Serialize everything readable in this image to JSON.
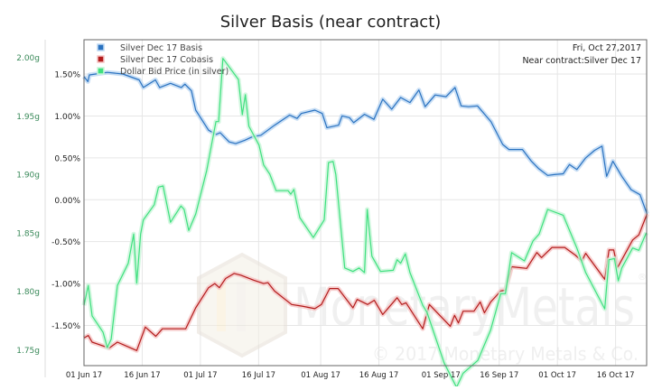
{
  "chart_data": {
    "type": "line",
    "title": "Silver Basis (near contract)",
    "annotation": {
      "date": "Fri, Oct 27,2017",
      "contract": "Near contract:Silver Dec 17"
    },
    "x_unit": "days since 01 Jun 17",
    "x_range": [
      0,
      145
    ],
    "x_ticks": [
      {
        "day": 0,
        "label": "01 Jun 17"
      },
      {
        "day": 15,
        "label": "16 Jun 17"
      },
      {
        "day": 30,
        "label": "01 Jul 17"
      },
      {
        "day": 45,
        "label": "16 Jul 17"
      },
      {
        "day": 61,
        "label": "01 Aug 17"
      },
      {
        "day": 76,
        "label": "16 Aug 17"
      },
      {
        "day": 92,
        "label": "01 Sep 17"
      },
      {
        "day": 107,
        "label": "16 Sep 17"
      },
      {
        "day": 122,
        "label": "01 Oct 17"
      },
      {
        "day": 137,
        "label": "16 Oct 17"
      }
    ],
    "y_left": {
      "range": [
        -1.98,
        1.91
      ],
      "ticks": [
        1.5,
        1.0,
        0.5,
        0.0,
        -0.5,
        -1.0,
        -1.5
      ],
      "tick_labels": [
        "1.50%",
        "1.00%",
        "0.50%",
        "0.00%",
        "-0.50%",
        "-1.00%",
        "-1.50%"
      ]
    },
    "y_right": {
      "range": [
        1.7365,
        2.015
      ],
      "ticks": [
        2.0,
        1.95,
        1.9,
        1.85,
        1.8,
        1.75
      ],
      "tick_labels": [
        "2.00g",
        "1.95g",
        "1.90g",
        "1.85g",
        "1.80g",
        "1.75g"
      ]
    },
    "grid": true,
    "legend_position": "top-left",
    "series": [
      {
        "name": "Silver Dec 17 Basis",
        "axis": "left",
        "color": "#2a72c0",
        "glow": "#bcd7f2",
        "points": [
          [
            0,
            1.47
          ],
          [
            1,
            1.41
          ],
          [
            1.4,
            1.49
          ],
          [
            3,
            1.5
          ],
          [
            6,
            1.52
          ],
          [
            10,
            1.5
          ],
          [
            14.2,
            1.43
          ],
          [
            15.3,
            1.34
          ],
          [
            18.4,
            1.43
          ],
          [
            19.5,
            1.34
          ],
          [
            22.3,
            1.39
          ],
          [
            25.1,
            1.34
          ],
          [
            26,
            1.38
          ],
          [
            27.7,
            1.3
          ],
          [
            28.8,
            1.07
          ],
          [
            32.1,
            0.83
          ],
          [
            34,
            0.78
          ],
          [
            35.1,
            0.8
          ],
          [
            37.4,
            0.69
          ],
          [
            39.1,
            0.67
          ],
          [
            41.4,
            0.71
          ],
          [
            43.3,
            0.75
          ],
          [
            45.6,
            0.77
          ],
          [
            49.1,
            0.89
          ],
          [
            53,
            1.01
          ],
          [
            54.9,
            0.97
          ],
          [
            56,
            1.03
          ],
          [
            59.5,
            1.07
          ],
          [
            61.4,
            1.03
          ],
          [
            62.6,
            0.86
          ],
          [
            65.6,
            0.89
          ],
          [
            66.5,
            1.0
          ],
          [
            68.4,
            0.98
          ],
          [
            69.5,
            0.92
          ],
          [
            72.3,
            1.02
          ],
          [
            74.7,
            0.96
          ],
          [
            77,
            1.2
          ],
          [
            79.3,
            1.08
          ],
          [
            81.6,
            1.22
          ],
          [
            84,
            1.16
          ],
          [
            86.3,
            1.31
          ],
          [
            87.9,
            1.11
          ],
          [
            90.5,
            1.25
          ],
          [
            93.3,
            1.23
          ],
          [
            95.6,
            1.34
          ],
          [
            97.2,
            1.12
          ],
          [
            99.1,
            1.11
          ],
          [
            101.4,
            1.12
          ],
          [
            104.9,
            0.93
          ],
          [
            107.9,
            0.66
          ],
          [
            109.5,
            0.6
          ],
          [
            113,
            0.6
          ],
          [
            115.3,
            0.46
          ],
          [
            117.2,
            0.37
          ],
          [
            119.5,
            0.29
          ],
          [
            121.2,
            0.3
          ],
          [
            123.5,
            0.31
          ],
          [
            125.1,
            0.42
          ],
          [
            127,
            0.36
          ],
          [
            129.3,
            0.5
          ],
          [
            131.6,
            0.59
          ],
          [
            133.5,
            0.64
          ],
          [
            134.7,
            0.28
          ],
          [
            136.3,
            0.46
          ],
          [
            138.6,
            0.28
          ],
          [
            141,
            0.12
          ],
          [
            143.3,
            0.06
          ],
          [
            145.1,
            -0.17
          ]
        ]
      },
      {
        "name": "Silver Dec 17 Cobasis",
        "axis": "left",
        "color": "#b31b1b",
        "glow": "#f5c4c4",
        "points": [
          [
            0,
            -1.65
          ],
          [
            1.1,
            -1.62
          ],
          [
            2.1,
            -1.7
          ],
          [
            6.5,
            -1.77
          ],
          [
            8.6,
            -1.7
          ],
          [
            13.6,
            -1.8
          ],
          [
            15.8,
            -1.52
          ],
          [
            18.5,
            -1.63
          ],
          [
            20.2,
            -1.54
          ],
          [
            26.2,
            -1.54
          ],
          [
            28.8,
            -1.29
          ],
          [
            32.1,
            -1.05
          ],
          [
            33.7,
            -1.0
          ],
          [
            34.9,
            -1.05
          ],
          [
            36.5,
            -0.94
          ],
          [
            38.7,
            -0.88
          ],
          [
            40.4,
            -0.9
          ],
          [
            43.7,
            -0.96
          ],
          [
            46.3,
            -1.0
          ],
          [
            47.4,
            -0.99
          ],
          [
            49.1,
            -1.09
          ],
          [
            53.5,
            -1.25
          ],
          [
            56.2,
            -1.27
          ],
          [
            59.5,
            -1.3
          ],
          [
            61.2,
            -1.25
          ],
          [
            63.3,
            -1.06
          ],
          [
            65.5,
            -1.06
          ],
          [
            69.3,
            -1.29
          ],
          [
            70.4,
            -1.19
          ],
          [
            73.1,
            -1.25
          ],
          [
            74.8,
            -1.2
          ],
          [
            77,
            -1.37
          ],
          [
            80.7,
            -1.17
          ],
          [
            81.9,
            -1.25
          ],
          [
            83,
            -1.23
          ],
          [
            87.3,
            -1.54
          ],
          [
            89,
            -1.25
          ],
          [
            94.4,
            -1.51
          ],
          [
            95.5,
            -1.38
          ],
          [
            96.5,
            -1.47
          ],
          [
            97.7,
            -1.33
          ],
          [
            100.5,
            -1.33
          ],
          [
            102.1,
            -1.22
          ],
          [
            103.2,
            -1.35
          ],
          [
            104.8,
            -1.22
          ],
          [
            107.4,
            -1.09
          ],
          [
            108.6,
            -1.08
          ],
          [
            110.2,
            -0.8
          ],
          [
            114.1,
            -0.82
          ],
          [
            116.7,
            -0.63
          ],
          [
            117.9,
            -0.69
          ],
          [
            120.6,
            -0.57
          ],
          [
            123.9,
            -0.57
          ],
          [
            126.6,
            -0.66
          ],
          [
            128.3,
            -0.73
          ],
          [
            129.3,
            -0.64
          ],
          [
            134.2,
            -0.95
          ],
          [
            135.3,
            -0.6
          ],
          [
            136.5,
            -0.6
          ],
          [
            137.5,
            -0.81
          ],
          [
            141.4,
            -0.48
          ],
          [
            143,
            -0.42
          ],
          [
            145.1,
            -0.17
          ]
        ]
      },
      {
        "name": "Dollar Bid Price (in silver)",
        "axis": "right",
        "color": "#3fe07f",
        "glow": "#c8f5d8",
        "points": [
          [
            0,
            1.788
          ],
          [
            1.1,
            1.805
          ],
          [
            2.1,
            1.779
          ],
          [
            4.9,
            1.765
          ],
          [
            6,
            1.752
          ],
          [
            7,
            1.759
          ],
          [
            8.6,
            1.805
          ],
          [
            11.4,
            1.824
          ],
          [
            12.8,
            1.849
          ],
          [
            13.6,
            1.807
          ],
          [
            14.6,
            1.849
          ],
          [
            15.3,
            1.861
          ],
          [
            18.1,
            1.874
          ],
          [
            19.2,
            1.889
          ],
          [
            20.4,
            1.89
          ],
          [
            22.3,
            1.859
          ],
          [
            25,
            1.873
          ],
          [
            25.8,
            1.87
          ],
          [
            27,
            1.852
          ],
          [
            28.8,
            1.866
          ],
          [
            31.6,
            1.903
          ],
          [
            34,
            1.945
          ],
          [
            34.7,
            1.945
          ],
          [
            35.8,
            1.999
          ],
          [
            39.8,
            1.981
          ],
          [
            40.8,
            1.951
          ],
          [
            41.6,
            1.968
          ],
          [
            42.5,
            1.941
          ],
          [
            45.1,
            1.925
          ],
          [
            46.3,
            1.908
          ],
          [
            47.9,
            1.9
          ],
          [
            49.5,
            1.886
          ],
          [
            52.6,
            1.886
          ],
          [
            53.3,
            1.883
          ],
          [
            54.1,
            1.887
          ],
          [
            55.6,
            1.863
          ],
          [
            59.1,
            1.846
          ],
          [
            61.9,
            1.861
          ],
          [
            63,
            1.91
          ],
          [
            64.2,
            1.911
          ],
          [
            64.9,
            1.9
          ],
          [
            67.2,
            1.82
          ],
          [
            69.3,
            1.817
          ],
          [
            70.9,
            1.82
          ],
          [
            72.3,
            1.816
          ],
          [
            73,
            1.87
          ],
          [
            74.2,
            1.83
          ],
          [
            76.4,
            1.817
          ],
          [
            79.7,
            1.818
          ],
          [
            80.7,
            1.827
          ],
          [
            81.6,
            1.824
          ],
          [
            82.8,
            1.832
          ],
          [
            84,
            1.816
          ],
          [
            87.3,
            1.788
          ],
          [
            88.4,
            1.782
          ],
          [
            92.8,
            1.739
          ],
          [
            96,
            1.718
          ],
          [
            97.7,
            1.73
          ],
          [
            101.5,
            1.741
          ],
          [
            104.8,
            1.767
          ],
          [
            107.4,
            1.798
          ],
          [
            108.6,
            1.798
          ],
          [
            110.2,
            1.833
          ],
          [
            113.5,
            1.826
          ],
          [
            115.7,
            1.843
          ],
          [
            117.3,
            1.849
          ],
          [
            119.5,
            1.87
          ],
          [
            123.5,
            1.865
          ],
          [
            127,
            1.837
          ],
          [
            129.3,
            1.816
          ],
          [
            134.2,
            1.785
          ],
          [
            135.3,
            1.827
          ],
          [
            136.7,
            1.828
          ],
          [
            137.7,
            1.809
          ],
          [
            138.6,
            1.82
          ],
          [
            141.4,
            1.837
          ],
          [
            143,
            1.835
          ],
          [
            144.9,
            1.85
          ]
        ]
      }
    ]
  },
  "watermark": {
    "brand": "MonetaryMetals",
    "registered": "®",
    "copyright": "© 2017 Monetary Metals & Co."
  },
  "colors": {
    "right_axis_text": "#3a8a5a",
    "grid": "#e6e6e6",
    "axis": "#888888"
  }
}
